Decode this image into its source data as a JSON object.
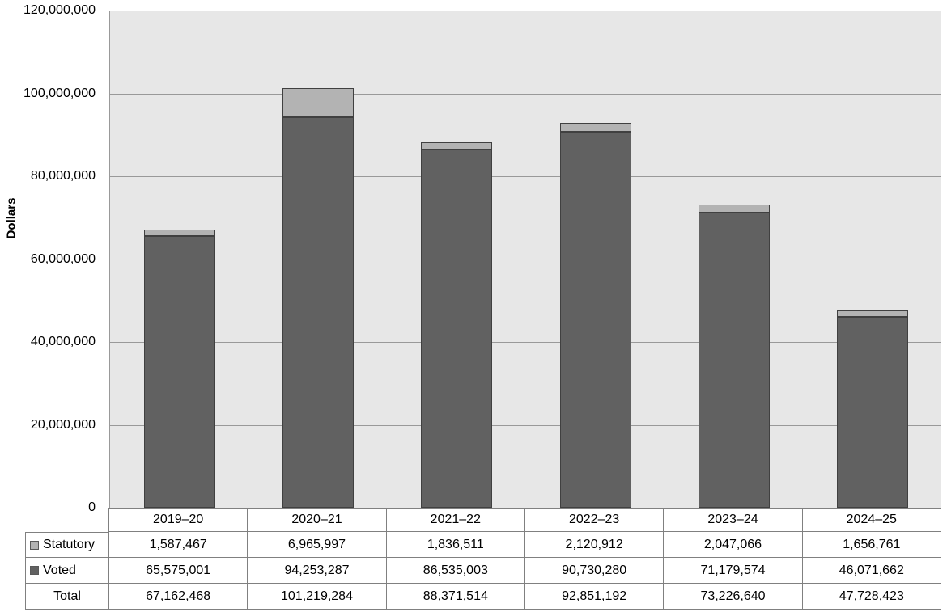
{
  "chart_data": {
    "type": "bar",
    "stacked": true,
    "title": "",
    "xlabel": "",
    "ylabel": "Dollars",
    "categories": [
      "2019–20",
      "2020–21",
      "2021–22",
      "2022–23",
      "2023–24",
      "2024–25"
    ],
    "series": [
      {
        "name": "Statutory",
        "color": "#b3b3b3",
        "values": [
          1587467,
          6965997,
          1836511,
          2120912,
          2047066,
          1656761
        ]
      },
      {
        "name": "Voted",
        "color": "#616161",
        "values": [
          65575001,
          94253287,
          86535003,
          90730280,
          71179574,
          46071662
        ]
      }
    ],
    "totals": {
      "name": "Total",
      "values": [
        67162468,
        101219284,
        88371514,
        92851192,
        73226640,
        47728423
      ]
    },
    "ylim": [
      0,
      120000000
    ],
    "ytick_step": 20000000,
    "ytick_labels": [
      "0",
      "20,000,000",
      "40,000,000",
      "60,000,000",
      "80,000,000",
      "100,000,000",
      "120,000,000"
    ],
    "grid": true,
    "legend_position": "table-left",
    "plot_bg": "#e7e7e7",
    "gridline_color": "#999999",
    "bar_border_color": "#404040"
  },
  "table": {
    "header": [
      "2019–20",
      "2020–21",
      "2021–22",
      "2022–23",
      "2023–24",
      "2024–25"
    ],
    "rows": [
      {
        "label": "Statutory",
        "marker": "#b3b3b3",
        "values": [
          "1,587,467",
          "6,965,997",
          "1,836,511",
          "2,120,912",
          "2,047,066",
          "1,656,761"
        ]
      },
      {
        "label": "Voted",
        "marker": "#616161",
        "values": [
          "65,575,001",
          "94,253,287",
          "86,535,003",
          "90,730,280",
          "71,179,574",
          "46,071,662"
        ]
      },
      {
        "label": "Total",
        "marker": null,
        "values": [
          "67,162,468",
          "101,219,284",
          "88,371,514",
          "92,851,192",
          "73,226,640",
          "47,728,423"
        ]
      }
    ],
    "border_color": "#808080"
  }
}
